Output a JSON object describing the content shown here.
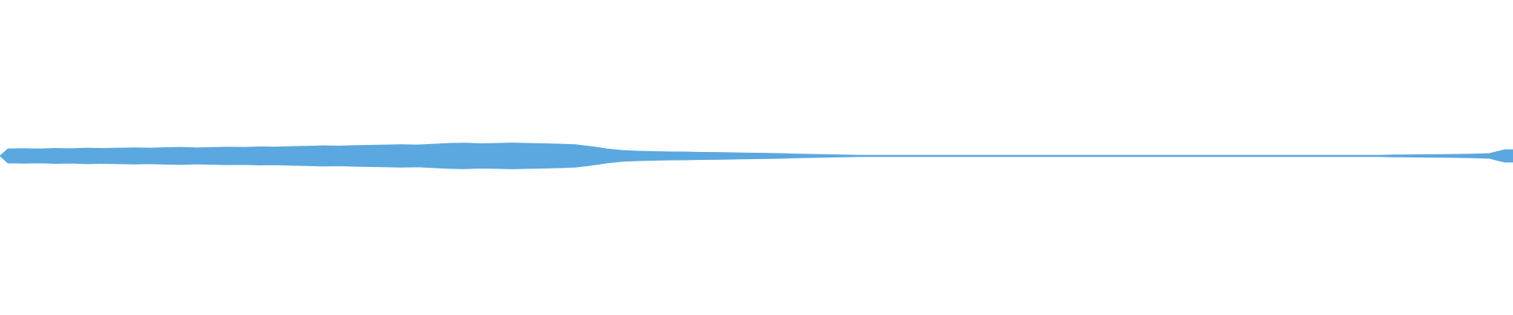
{
  "chart_data": {
    "type": "waveform",
    "color": "#5ba8e0",
    "ylim": [
      -1,
      1
    ],
    "values": [
      0.045,
      0.047,
      0.045,
      0.048,
      0.046,
      0.05,
      0.048,
      0.05,
      0.052,
      0.05,
      0.053,
      0.055,
      0.052,
      0.054,
      0.056,
      0.055,
      0.058,
      0.057,
      0.06,
      0.062,
      0.065,
      0.063,
      0.066,
      0.068,
      0.07,
      0.072,
      0.07,
      0.075,
      0.08,
      0.082,
      0.078,
      0.08,
      0.083,
      0.08,
      0.078,
      0.076,
      0.072,
      0.06,
      0.045,
      0.035,
      0.03,
      0.028,
      0.026,
      0.025,
      0.023,
      0.022,
      0.02,
      0.018,
      0.017,
      0.015,
      0.012,
      0.01,
      0.008,
      0.006,
      0.004,
      0.004,
      0.004,
      0.004,
      0.004,
      0.004,
      0.004,
      0.004,
      0.004,
      0.004,
      0.004,
      0.004,
      0.004,
      0.004,
      0.004,
      0.004,
      0.004,
      0.004,
      0.004,
      0.004,
      0.004,
      0.004,
      0.004,
      0.004,
      0.004,
      0.004,
      0.004,
      0.004,
      0.004,
      0.004,
      0.004,
      0.004,
      0.004,
      0.004,
      0.006,
      0.007,
      0.008,
      0.009,
      0.01,
      0.012,
      0.015,
      0.04
    ]
  }
}
